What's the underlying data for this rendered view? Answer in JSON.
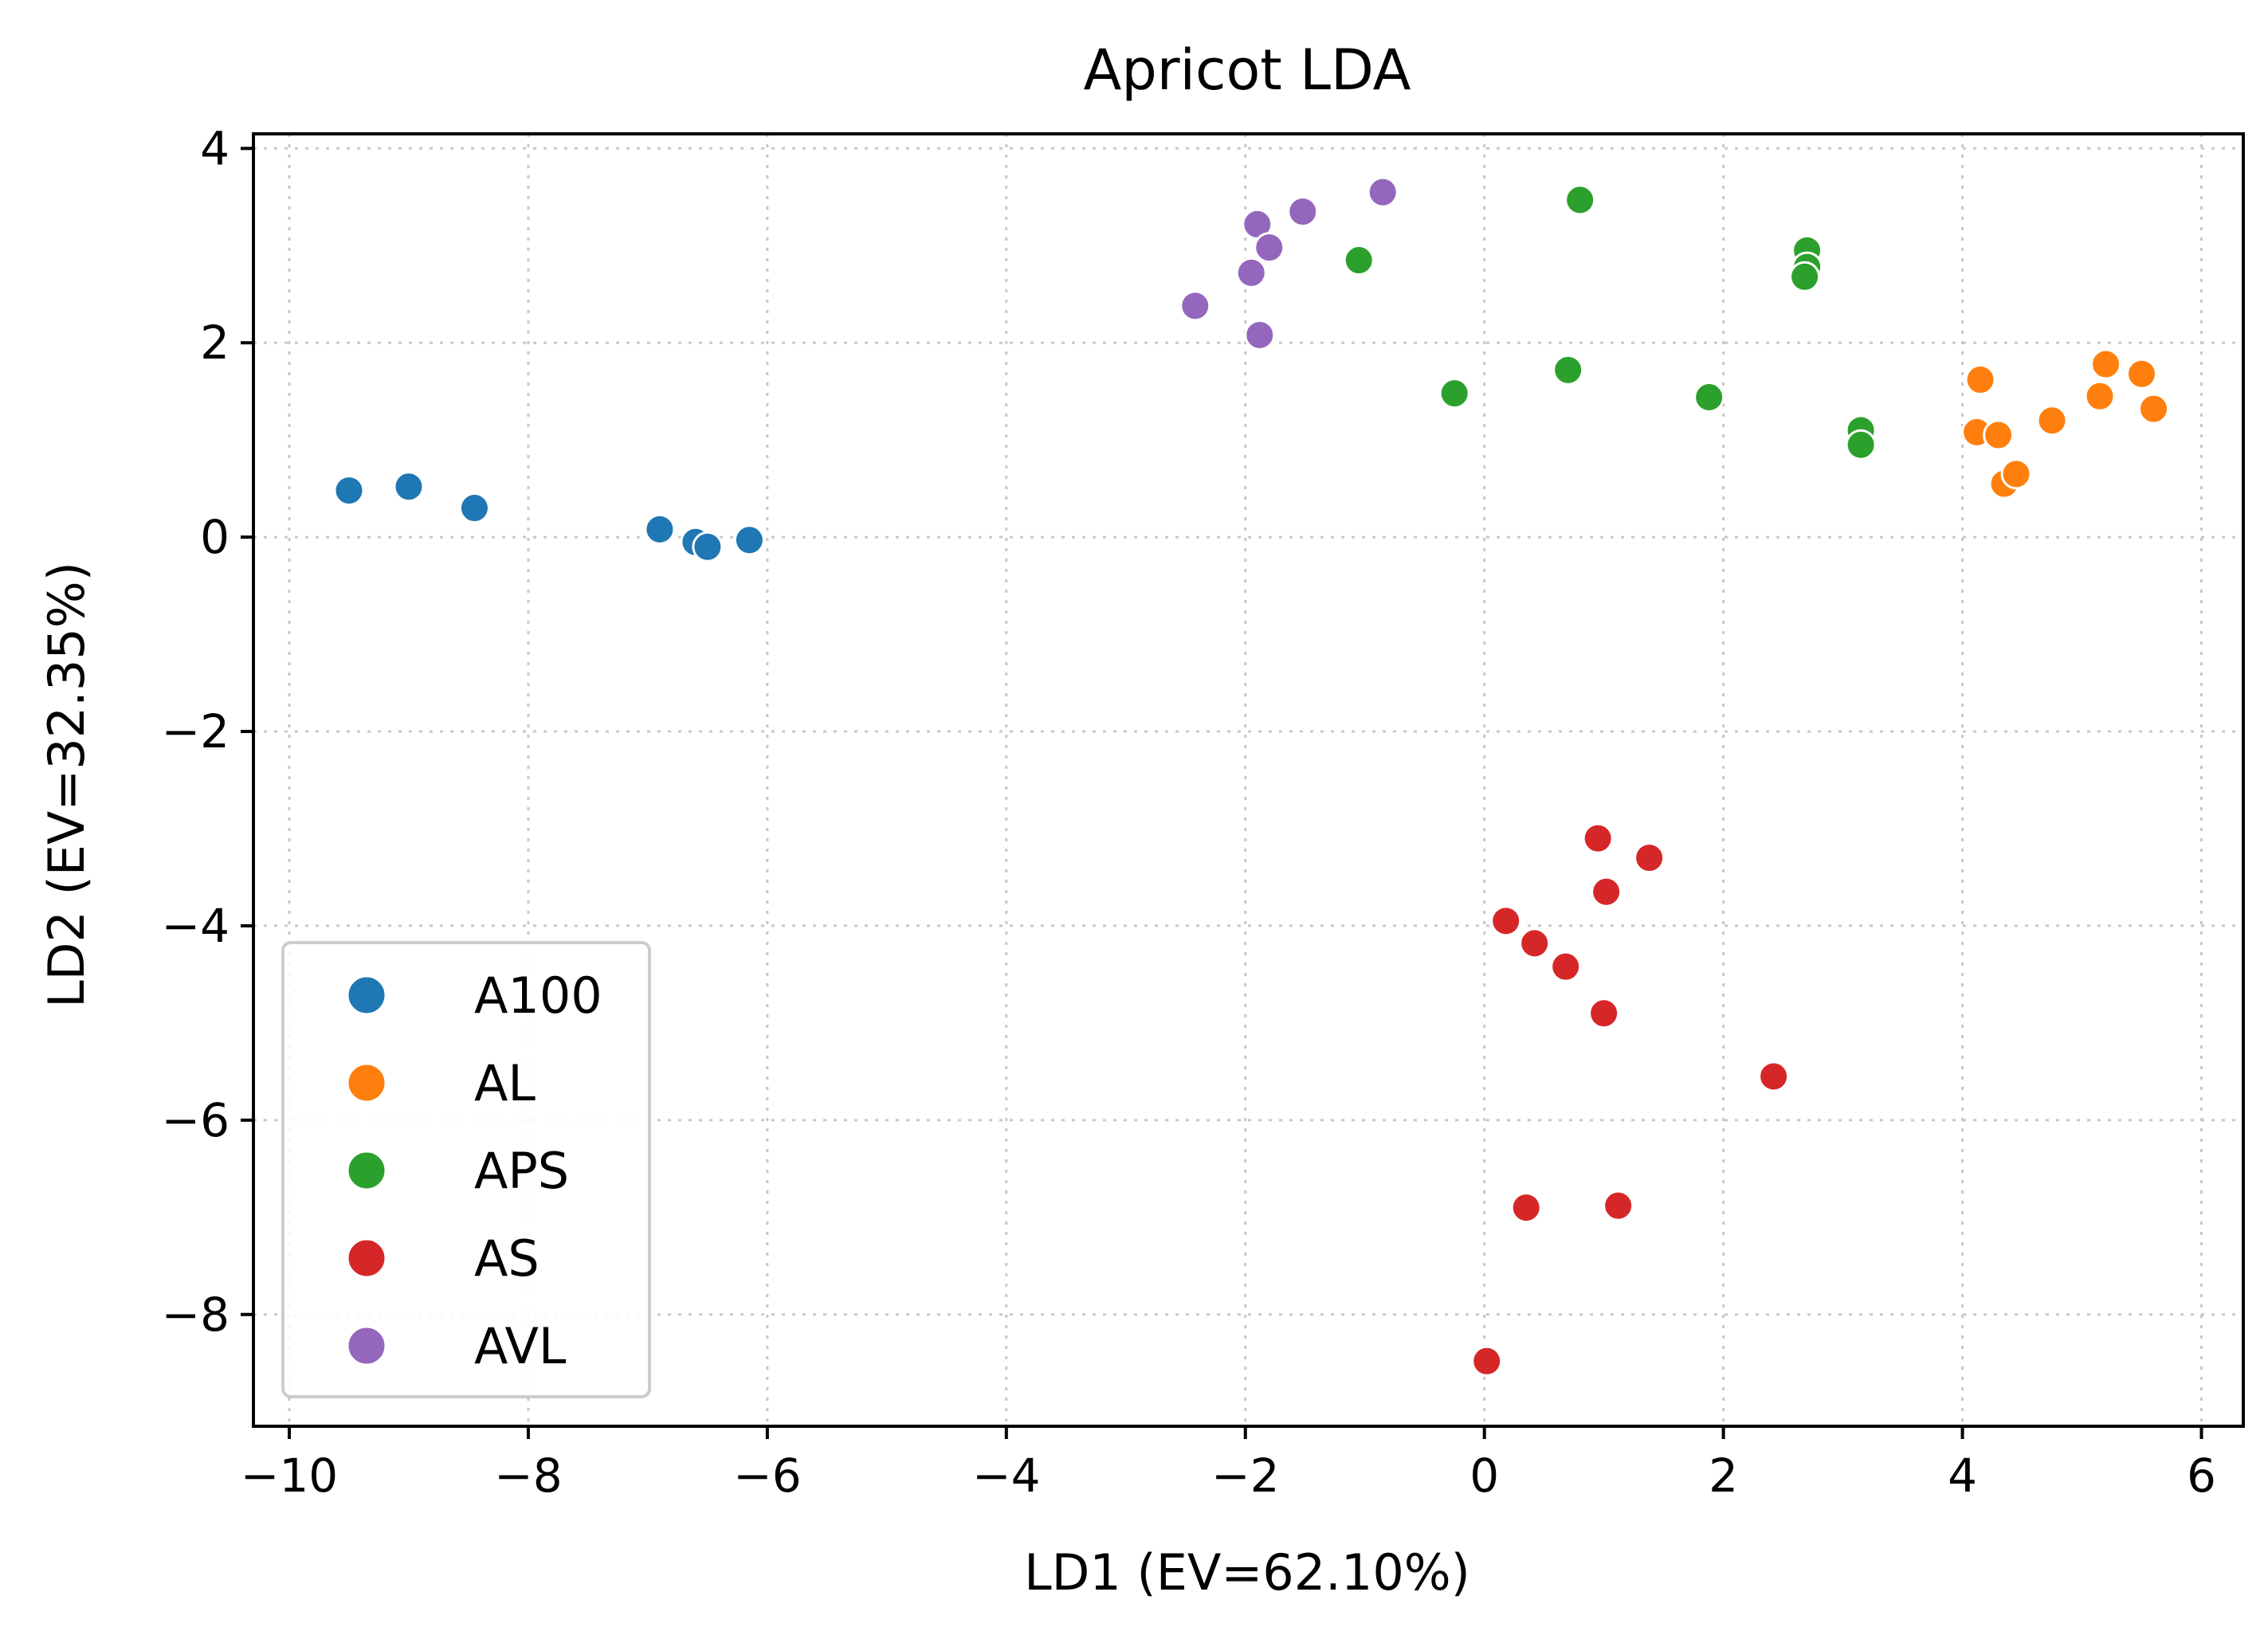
{
  "chart_data": {
    "type": "scatter",
    "title": "Apricot LDA",
    "xlabel": "LD1 (EV=62.10%)",
    "ylabel": "LD2 (EV=32.35%)",
    "xlim": [
      -10.3,
      6.35
    ],
    "ylim": [
      -9.15,
      4.15
    ],
    "xticks": [
      -10,
      -8,
      -6,
      -4,
      -2,
      0,
      2,
      4,
      6
    ],
    "yticks": [
      -8,
      -6,
      -4,
      -2,
      0,
      2,
      4
    ],
    "xtick_labels": [
      "−10",
      "−8",
      "−6",
      "−4",
      "−2",
      "0",
      "2",
      "4",
      "6"
    ],
    "ytick_labels": [
      "−8",
      "−6",
      "−4",
      "−2",
      "0",
      "2",
      "4"
    ],
    "grid": true,
    "legend_position": "lower-left",
    "series": [
      {
        "name": "A100",
        "color": "#1f77b4",
        "points": [
          [
            -9.5,
            0.48
          ],
          [
            -9.0,
            0.52
          ],
          [
            -8.45,
            0.3
          ],
          [
            -6.9,
            0.08
          ],
          [
            -6.6,
            -0.05
          ],
          [
            -6.5,
            -0.1
          ],
          [
            -6.15,
            -0.03
          ]
        ]
      },
      {
        "name": "AL",
        "color": "#ff7f0e",
        "points": [
          [
            4.15,
            1.62
          ],
          [
            4.12,
            1.08
          ],
          [
            4.3,
            1.05
          ],
          [
            4.35,
            0.55
          ],
          [
            4.45,
            0.65
          ],
          [
            4.75,
            1.2
          ],
          [
            5.2,
            1.78
          ],
          [
            5.15,
            1.45
          ],
          [
            5.5,
            1.68
          ],
          [
            5.6,
            1.32
          ]
        ]
      },
      {
        "name": "APS",
        "color": "#2ca02c",
        "points": [
          [
            0.8,
            3.47
          ],
          [
            -1.05,
            2.85
          ],
          [
            -0.25,
            1.48
          ],
          [
            0.7,
            1.72
          ],
          [
            1.88,
            1.44
          ],
          [
            2.7,
            2.95
          ],
          [
            2.7,
            2.78
          ],
          [
            2.68,
            2.68
          ],
          [
            3.15,
            1.1
          ],
          [
            3.15,
            0.95
          ]
        ]
      },
      {
        "name": "AS",
        "color": "#d62728",
        "points": [
          [
            0.95,
            -3.1
          ],
          [
            1.38,
            -3.3
          ],
          [
            1.02,
            -3.65
          ],
          [
            0.18,
            -3.95
          ],
          [
            0.42,
            -4.18
          ],
          [
            0.68,
            -4.42
          ],
          [
            1.0,
            -4.9
          ],
          [
            2.42,
            -5.55
          ],
          [
            0.35,
            -6.9
          ],
          [
            1.12,
            -6.88
          ],
          [
            0.02,
            -8.48
          ]
        ]
      },
      {
        "name": "AVL",
        "color": "#9467bd",
        "points": [
          [
            -0.85,
            3.55
          ],
          [
            -1.52,
            3.35
          ],
          [
            -1.9,
            3.22
          ],
          [
            -1.8,
            2.98
          ],
          [
            -1.95,
            2.72
          ],
          [
            -2.42,
            2.38
          ],
          [
            -1.88,
            2.08
          ]
        ]
      }
    ]
  }
}
